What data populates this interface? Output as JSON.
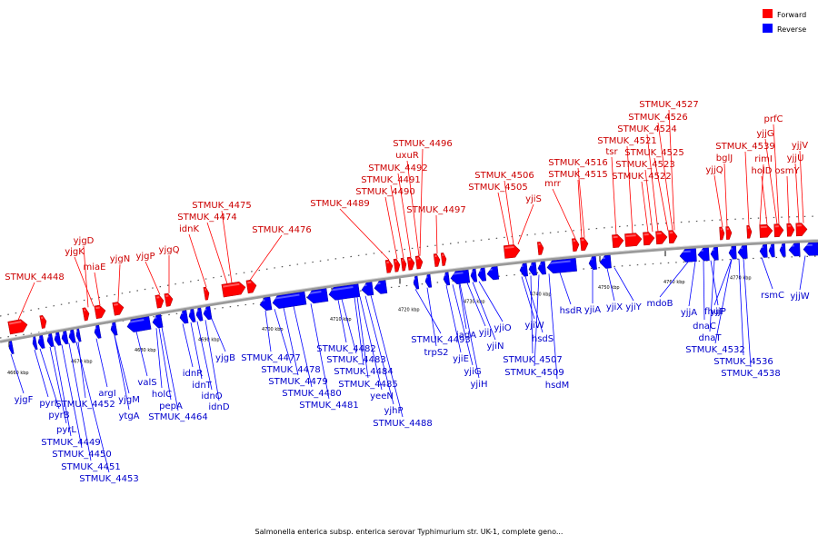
{
  "legend": {
    "forward": {
      "label": "Forward",
      "color": "#ff0000"
    },
    "reverse": {
      "label": "Reverse",
      "color": "#0000ff"
    }
  },
  "caption": "Salmonella enterica subsp. enterica serovar Typhimurium str. UK-1, complete geno...",
  "ticks": [
    "4660 kbp",
    "4670 kbp",
    "4680 kbp",
    "4690 kbp",
    "4700 kbp",
    "4710 kbp",
    "4720 kbp",
    "4730 kbp",
    "4740 kbp",
    "4750 kbp",
    "4760 kbp",
    "4770 kbp"
  ],
  "forward_labels": [
    "STMUK_4448",
    "yjgD",
    "yjgK",
    "miaE",
    "yjgN",
    "yjgP",
    "yjgQ",
    "idnK",
    "STMUK_4474",
    "STMUK_4475",
    "STMUK_4476",
    "STMUK_4489",
    "STMUK_4490",
    "STMUK_4491",
    "STMUK_4492",
    "uxuR",
    "STMUK_4496",
    "STMUK_4497",
    "STMUK_4505",
    "STMUK_4506",
    "yjiS",
    "mrr",
    "STMUK_4515",
    "STMUK_4516",
    "tsr",
    "STMUK_4521",
    "STMUK_4522",
    "STMUK_4523",
    "STMUK_4524",
    "STMUK_4525",
    "STMUK_4526",
    "STMUK_4527",
    "yjjQ",
    "bglJ",
    "STMUK_4539",
    "rimI",
    "holD",
    "yjjG",
    "prfC",
    "osmY",
    "yjjU",
    "yjjV"
  ],
  "reverse_labels": [
    "yjgF",
    "pyrI",
    "pyrB",
    "pyrL",
    "STMUK_4449",
    "STMUK_4450",
    "STMUK_4451",
    "STMUK_4452",
    "STMUK_4453",
    "argI",
    "yjgM",
    "ytgA",
    "valS",
    "holC",
    "pepA",
    "STMUK_4464",
    "idnR",
    "idnT",
    "idnO",
    "idnD",
    "yjgB",
    "STMUK_4477",
    "STMUK_4478",
    "STMUK_4479",
    "STMUK_4480",
    "STMUK_4481",
    "STMUK_4482",
    "STMUK_4483",
    "STMUK_4484",
    "STMUK_4485",
    "yeeN",
    "yjhP",
    "STMUK_4488",
    "STMUK_4493",
    "trpS2",
    "yjiE",
    "yjiG",
    "yjiH",
    "iadA",
    "yjiJ",
    "yjiN",
    "yjiO",
    "yjiW",
    "hsdS",
    "STMUK_4507",
    "STMUK_4509",
    "hsdM",
    "hsdR",
    "yjiA",
    "yjiX",
    "yjiY",
    "mdoB",
    "yjjA",
    "dnaC",
    "yjjP",
    "dnaT",
    "fhuF",
    "STMUK_4532",
    "STMUK_4536",
    "STMUK_4538",
    "rsmC",
    "yjjW"
  ]
}
